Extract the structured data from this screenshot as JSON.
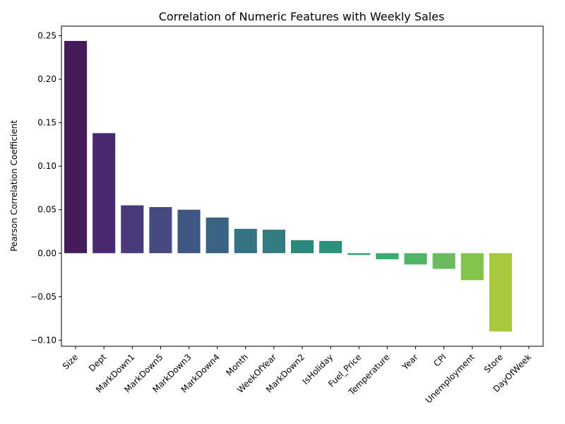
{
  "chart_data": {
    "type": "bar",
    "title": "Correlation of Numeric Features with Weekly Sales",
    "xlabel": "",
    "ylabel": "Pearson Correlation Coefficient",
    "ylim": [
      -0.107,
      0.261
    ],
    "yticks": [
      -0.1,
      -0.05,
      0.0,
      0.05,
      0.1,
      0.15,
      0.2,
      0.25
    ],
    "ytick_labels": [
      "−0.10",
      "−0.05",
      "0.00",
      "0.05",
      "0.10",
      "0.15",
      "0.20",
      "0.25"
    ],
    "grid": false,
    "categories": [
      "Size",
      "Dept",
      "MarkDown1",
      "MarkDown5",
      "MarkDown3",
      "MarkDown4",
      "Month",
      "WeekOfYear",
      "MarkDown2",
      "IsHoliday",
      "Fuel_Price",
      "Temperature",
      "Year",
      "CPI",
      "Unemployment",
      "Store",
      "DayOfWeek"
    ],
    "values": [
      0.244,
      0.138,
      0.055,
      0.053,
      0.05,
      0.041,
      0.028,
      0.027,
      0.015,
      0.014,
      -0.002,
      -0.007,
      -0.013,
      -0.018,
      -0.031,
      -0.09,
      null
    ],
    "colors": [
      "#471a5a",
      "#48296f",
      "#47397a",
      "#454a7f",
      "#3e5782",
      "#3a6382",
      "#347381",
      "#327b80",
      "#2c877d",
      "#2a927b",
      "#2fa178",
      "#3aab70",
      "#52b466",
      "#6aba5f",
      "#84c24e",
      "#a7c73d",
      "#c9ce2f"
    ]
  }
}
